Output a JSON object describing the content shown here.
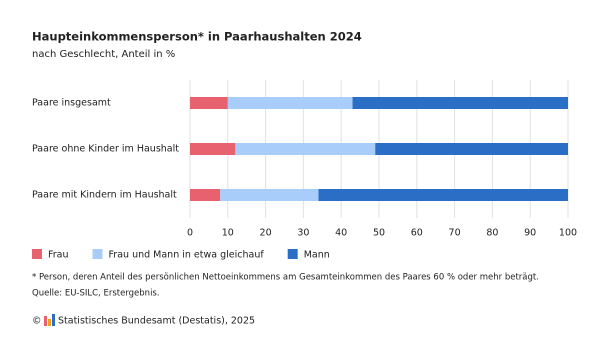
{
  "chart_data": {
    "type": "stacked-barh",
    "title": "Haupteinkommensperson* in Paarhaushalten 2024",
    "subtitle": "nach Geschlecht, Anteil in %",
    "categories": [
      "Paare insgesamt",
      "Paare ohne Kinder im Haushalt",
      "Paare mit Kindern im Haushalt"
    ],
    "series": [
      {
        "name": "Frau",
        "color": "#e8616e",
        "values": [
          10,
          12,
          8
        ]
      },
      {
        "name": "Frau und Mann in etwa gleichauf",
        "color": "#a9cdfb",
        "values": [
          33,
          37,
          26
        ]
      },
      {
        "name": "Mann",
        "color": "#2a6ec6",
        "values": [
          57,
          51,
          66
        ]
      }
    ],
    "xlim": [
      0,
      100
    ],
    "xticks": [
      0,
      10,
      20,
      30,
      40,
      50,
      60,
      70,
      80,
      90,
      100
    ],
    "grid": true,
    "legend": "bottom-left",
    "footnote": "* Person, deren Anteil des persönlichen Nettoeinkommens am Gesamteinkommen des Paares 60 % oder mehr beträgt.",
    "source": "Quelle: EU-SILC, Erstergebnis.",
    "copyright_symbol": "©",
    "copyright": "Statistisches Bundesamt (Destatis), 2025"
  }
}
